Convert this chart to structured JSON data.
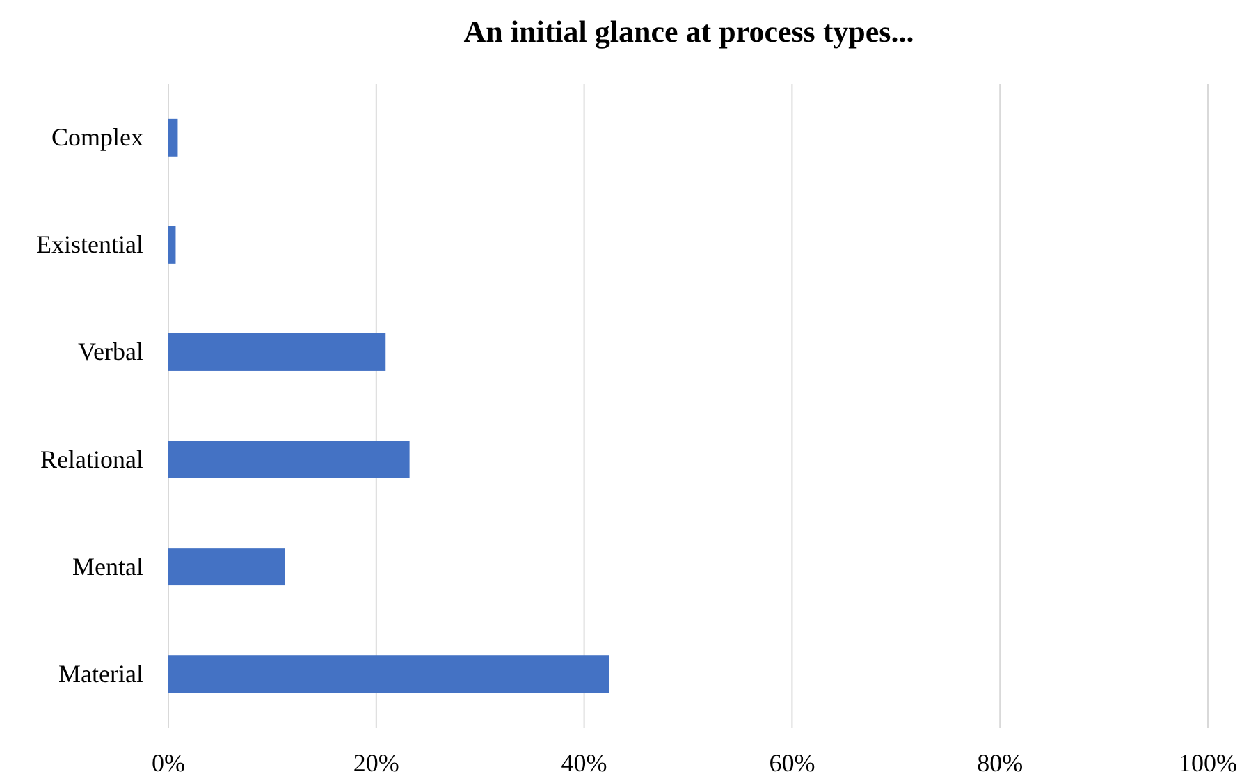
{
  "chart_data": {
    "type": "bar",
    "orientation": "horizontal",
    "title": "An initial glance at process types...",
    "categories": [
      "Complex",
      "Existential",
      "Verbal",
      "Relational",
      "Mental",
      "Material"
    ],
    "values": [
      0.9,
      0.7,
      20.9,
      23.2,
      11.2,
      42.4
    ],
    "color": "#4472c4",
    "xlim": [
      0,
      100
    ],
    "xticks": [
      {
        "value": 0,
        "label": "0%"
      },
      {
        "value": 20,
        "label": "20%"
      },
      {
        "value": 40,
        "label": "40%"
      },
      {
        "value": 60,
        "label": "60%"
      },
      {
        "value": 80,
        "label": "80%"
      },
      {
        "value": 100,
        "label": "100%"
      }
    ],
    "grid": "x"
  }
}
